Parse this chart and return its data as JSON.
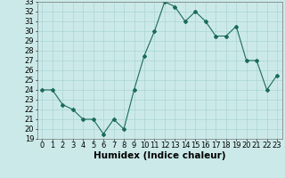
{
  "x": [
    0,
    1,
    2,
    3,
    4,
    5,
    6,
    7,
    8,
    9,
    10,
    11,
    12,
    13,
    14,
    15,
    16,
    17,
    18,
    19,
    20,
    21,
    22,
    23
  ],
  "y": [
    24,
    24,
    22.5,
    22,
    21,
    21,
    19.5,
    21,
    20,
    24,
    27.5,
    30,
    33,
    32.5,
    31,
    32,
    31,
    29.5,
    29.5,
    30.5,
    27,
    27,
    24,
    25.5
  ],
  "xlabel": "Humidex (Indice chaleur)",
  "ylim": [
    19,
    33
  ],
  "xlim": [
    -0.5,
    23.5
  ],
  "yticks": [
    19,
    20,
    21,
    22,
    23,
    24,
    25,
    26,
    27,
    28,
    29,
    30,
    31,
    32,
    33
  ],
  "xticks": [
    0,
    1,
    2,
    3,
    4,
    5,
    6,
    7,
    8,
    9,
    10,
    11,
    12,
    13,
    14,
    15,
    16,
    17,
    18,
    19,
    20,
    21,
    22,
    23
  ],
  "line_color": "#1a6b5a",
  "marker": "D",
  "marker_size": 2,
  "bg_color": "#cce9e9",
  "grid_color": "#aad4d4",
  "tick_fontsize": 6,
  "xlabel_fontsize": 7.5
}
